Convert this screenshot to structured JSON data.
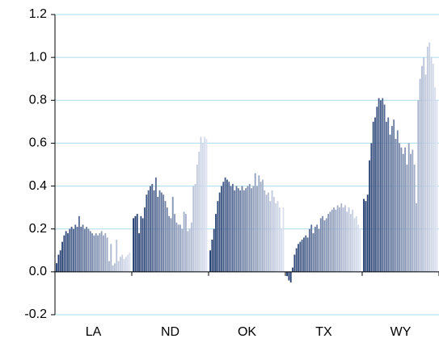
{
  "chart_data": {
    "type": "bar",
    "categories": [
      "LA",
      "ND",
      "OK",
      "TX",
      "WY"
    ],
    "values": [
      [
        0.04,
        0.08,
        0.1,
        0.14,
        0.17,
        0.19,
        0.18,
        0.2,
        0.21,
        0.2,
        0.22,
        0.21,
        0.26,
        0.21,
        0.22,
        0.2,
        0.21,
        0.2,
        0.19,
        0.18,
        0.17,
        0.18,
        0.17,
        0.18,
        0.19,
        0.17,
        0.18,
        0.16,
        0.05,
        0.13,
        0.03,
        0.04,
        0.15,
        0.05,
        0.07,
        0.08,
        0.06,
        0.07,
        0.08,
        0.09
      ],
      [
        0.25,
        0.26,
        0.27,
        0.18,
        0.26,
        0.25,
        0.3,
        0.36,
        0.38,
        0.4,
        0.41,
        0.38,
        0.44,
        0.35,
        0.38,
        0.37,
        0.36,
        0.33,
        0.3,
        0.26,
        0.25,
        0.35,
        0.27,
        0.23,
        0.22,
        0.22,
        0.2,
        0.28,
        0.27,
        0.19,
        0.2,
        0.23,
        0.4,
        0.41,
        0.5,
        0.56,
        0.63,
        0.6,
        0.63,
        0.62
      ],
      [
        0.1,
        0.15,
        0.2,
        0.27,
        0.33,
        0.37,
        0.4,
        0.42,
        0.44,
        0.43,
        0.42,
        0.4,
        0.41,
        0.38,
        0.4,
        0.39,
        0.38,
        0.4,
        0.38,
        0.39,
        0.4,
        0.41,
        0.39,
        0.4,
        0.46,
        0.4,
        0.45,
        0.42,
        0.43,
        0.38,
        0.36,
        0.37,
        0.33,
        0.38,
        0.35,
        0.32,
        0.33,
        0.3,
        0.2,
        0.3
      ],
      [
        -0.02,
        -0.04,
        -0.05,
        0.02,
        0.08,
        0.11,
        0.13,
        0.14,
        0.15,
        0.16,
        0.17,
        0.16,
        0.2,
        0.22,
        0.18,
        0.21,
        0.22,
        0.2,
        0.25,
        0.26,
        0.24,
        0.25,
        0.27,
        0.28,
        0.29,
        0.3,
        0.29,
        0.31,
        0.3,
        0.32,
        0.3,
        0.31,
        0.28,
        0.3,
        0.27,
        0.29,
        0.25,
        0.26,
        0.22,
        0.2
      ],
      [
        0.34,
        0.33,
        0.36,
        0.52,
        0.6,
        0.7,
        0.72,
        0.77,
        0.81,
        0.8,
        0.81,
        0.78,
        0.7,
        0.72,
        0.64,
        0.68,
        0.71,
        0.62,
        0.66,
        0.6,
        0.58,
        0.55,
        0.58,
        0.5,
        0.6,
        0.55,
        0.57,
        0.5,
        0.32,
        0.8,
        0.9,
        0.96,
        1.0,
        0.92,
        1.05,
        1.07,
        1.0,
        0.97,
        0.86,
        0.8
      ]
    ],
    "color_start": "#1f3a6e",
    "color_end": "#dbe1ef",
    "ylim": [
      -0.2,
      1.2
    ],
    "yticks": [
      {
        "value": -0.2,
        "label": "-0.2"
      },
      {
        "value": 0,
        "label": "0.0"
      },
      0.2,
      0.4,
      0.6,
      0.8,
      {
        "value": 1,
        "label": "1.0"
      },
      1.2
    ],
    "grid": true
  }
}
